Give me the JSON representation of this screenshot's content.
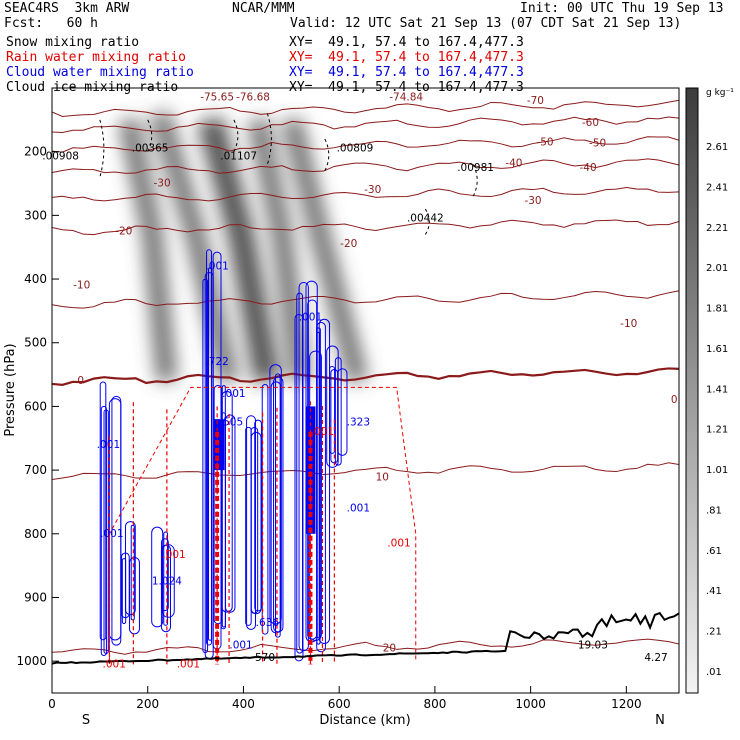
{
  "header": {
    "project": "SEAC4RS  3km ARW",
    "fcst": "Fcst:   60 h",
    "center": "NCAR/MMM",
    "init": "Init: 00 UTC Thu 19 Sep 13",
    "valid": "Valid: 12 UTC Sat 21 Sep 13 (07 CDT Sat 21 Sep 13)"
  },
  "legend": [
    {
      "label": "Snow mixing ratio",
      "xy": "XY=  49.1, 57.4 to 167.4,477.3",
      "color": "#000000"
    },
    {
      "label": "Rain water mixing ratio",
      "xy": "XY=  49.1, 57.4 to 167.4,477.3",
      "color": "#ff0000"
    },
    {
      "label": "Cloud water mixing ratio",
      "xy": "XY=  49.1, 57.4 to 167.4,477.3",
      "color": "#0000ff"
    },
    {
      "label": "Cloud ice mixing ratio",
      "xy": "XY=  49.1, 57.4 to 167.4,477.3",
      "color": "#000000"
    }
  ],
  "chart_data": {
    "type": "heatmap",
    "xlabel": "Distance (km)",
    "ylabel": "Pressure (hPa)",
    "xlim": [
      0,
      1310
    ],
    "ylim": [
      1050,
      100
    ],
    "xticks": [
      0,
      200,
      400,
      600,
      800,
      1000,
      1200
    ],
    "yticks": [
      200,
      300,
      400,
      500,
      600,
      700,
      800,
      900,
      1000
    ],
    "x_end_labels": {
      "left": "S",
      "right": "N"
    },
    "colorbar": {
      "unit": "g kg⁻¹",
      "labels": [
        "2.61",
        "2.41",
        "2.21",
        "2.01",
        "1.81",
        "1.61",
        "1.41",
        "1.21",
        "1.01",
        ".81",
        ".61",
        ".41",
        ".21",
        ".01"
      ]
    },
    "temperature_contours": [
      {
        "label": "-70",
        "p": 140
      },
      {
        "label": "-60",
        "p": 165
      },
      {
        "label": "-50",
        "p": 197
      },
      {
        "label": "-40",
        "p": 232
      },
      {
        "label": "-30",
        "p": 275
      },
      {
        "label": "-20",
        "p": 325
      },
      {
        "label": "-10",
        "p": 440
      },
      {
        "label": "0",
        "p": 560
      },
      {
        "label": "10",
        "p": 710
      },
      {
        "label": "20",
        "p": 985
      }
    ],
    "temperature_labels": [
      {
        "text": "-75.65",
        "x": 345,
        "p": 120
      },
      {
        "text": "-76.68",
        "x": 420,
        "p": 120
      },
      {
        "text": "-74.84",
        "x": 740,
        "p": 120
      },
      {
        "text": "-70",
        "x": 1010,
        "p": 125
      },
      {
        "text": "-60",
        "x": 1125,
        "p": 160
      },
      {
        "text": "-50",
        "x": 1030,
        "p": 190
      },
      {
        "text": "-50",
        "x": 1140,
        "p": 192
      },
      {
        "text": "-40",
        "x": 965,
        "p": 223
      },
      {
        "text": "-40",
        "x": 1120,
        "p": 230
      },
      {
        "text": "-30",
        "x": 230,
        "p": 255
      },
      {
        "text": "-30",
        "x": 670,
        "p": 265
      },
      {
        "text": "-30",
        "x": 1005,
        "p": 282
      },
      {
        "text": "-20",
        "x": 150,
        "p": 330
      },
      {
        "text": "-20",
        "x": 620,
        "p": 350
      },
      {
        "text": "-10",
        "x": 62,
        "p": 415
      },
      {
        "text": "-10",
        "x": 1205,
        "p": 475
      },
      {
        "text": "0",
        "x": 60,
        "p": 565
      },
      {
        "text": "0",
        "x": 1300,
        "p": 595
      },
      {
        "text": "10",
        "x": 690,
        "p": 716
      },
      {
        "text": "20",
        "x": 705,
        "p": 985
      }
    ],
    "maxima": [
      {
        "text": ".00908",
        "x": 18,
        "p": 212
      },
      {
        "text": ".00365",
        "x": 205,
        "p": 200
      },
      {
        "text": ".01107",
        "x": 390,
        "p": 212
      },
      {
        "text": ".00809",
        "x": 633,
        "p": 200
      },
      {
        "text": ".00442",
        "x": 780,
        "p": 310
      },
      {
        "text": ".00981",
        "x": 885,
        "p": 230
      },
      {
        "text": "19.03",
        "x": 1130,
        "p": 980
      },
      {
        "text": "4.27",
        "x": 1262,
        "p": 1000
      },
      {
        "text": "570",
        "x": 445,
        "p": 1000
      }
    ],
    "cloud_water_labels": [
      {
        "text": ".001",
        "x": 345,
        "p": 385
      },
      {
        "text": ".001",
        "x": 540,
        "p": 465
      },
      {
        "text": ".722",
        "x": 345,
        "p": 535
      },
      {
        "text": ".001",
        "x": 380,
        "p": 585
      },
      {
        "text": ".505",
        "x": 375,
        "p": 630
      },
      {
        "text": ".323",
        "x": 640,
        "p": 630
      },
      {
        "text": ".001",
        "x": 118,
        "p": 665
      },
      {
        "text": ".001",
        "x": 640,
        "p": 765
      },
      {
        "text": ".001",
        "x": 125,
        "p": 805
      },
      {
        "text": "1.024",
        "x": 240,
        "p": 880
      },
      {
        "text": ".636",
        "x": 450,
        "p": 945
      },
      {
        "text": ".001",
        "x": 395,
        "p": 980
      }
    ],
    "rain_water_labels": [
      {
        "text": ".001",
        "x": 565,
        "p": 645
      },
      {
        "text": ".001",
        "x": 725,
        "p": 820
      },
      {
        "text": ".001",
        "x": 255,
        "p": 838
      },
      {
        "text": ".001",
        "x": 130,
        "p": 1010
      },
      {
        "text": ".001",
        "x": 285,
        "p": 1010
      }
    ]
  }
}
